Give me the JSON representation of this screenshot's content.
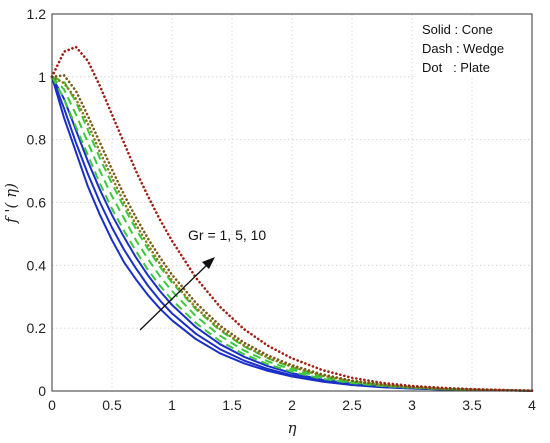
{
  "chart_data": {
    "type": "line",
    "xlabel": "η",
    "ylabel": "f '( η)",
    "xlim": [
      0,
      4
    ],
    "ylim": [
      0,
      1.2
    ],
    "xticks": [
      "0",
      "0.5",
      "1",
      "1.5",
      "2",
      "2.5",
      "3",
      "3.5",
      "4"
    ],
    "yticks": [
      "0",
      "0.2",
      "0.4",
      "0.6",
      "0.8",
      "1",
      "1.2"
    ],
    "grid": true,
    "legend_position": "top-right",
    "legend": [
      "Solid : Cone",
      "Dash : Wedge",
      "Dot   : Plate"
    ],
    "annotation": "Gr = 1, 5, 10",
    "x": [
      0,
      0.1,
      0.2,
      0.3,
      0.4,
      0.5,
      0.6,
      0.7,
      0.8,
      0.9,
      1.0,
      1.2,
      1.4,
      1.6,
      1.8,
      2.0,
      2.25,
      2.5,
      2.75,
      3.0,
      3.25,
      3.5,
      3.75,
      4.0
    ],
    "series": [
      {
        "style": "solid",
        "color": "#1a2fc8",
        "values": [
          1.0,
          0.87,
          0.76,
          0.65,
          0.56,
          0.48,
          0.41,
          0.355,
          0.305,
          0.262,
          0.225,
          0.165,
          0.12,
          0.088,
          0.064,
          0.046,
          0.03,
          0.019,
          0.012,
          0.008,
          0.005,
          0.003,
          0.002,
          0.001
        ]
      },
      {
        "style": "solid",
        "color": "#1a2fc8",
        "values": [
          1.0,
          0.9,
          0.79,
          0.69,
          0.6,
          0.52,
          0.45,
          0.39,
          0.335,
          0.288,
          0.247,
          0.182,
          0.133,
          0.097,
          0.07,
          0.05,
          0.032,
          0.02,
          0.013,
          0.008,
          0.005,
          0.003,
          0.002,
          0.001
        ]
      },
      {
        "style": "solid",
        "color": "#1a2fc8",
        "values": [
          1.0,
          0.93,
          0.83,
          0.73,
          0.64,
          0.56,
          0.49,
          0.425,
          0.368,
          0.318,
          0.274,
          0.203,
          0.149,
          0.109,
          0.079,
          0.057,
          0.036,
          0.023,
          0.014,
          0.009,
          0.006,
          0.004,
          0.002,
          0.001
        ]
      },
      {
        "style": "dash",
        "color": "#3cc83c",
        "values": [
          1.0,
          0.93,
          0.84,
          0.75,
          0.66,
          0.58,
          0.51,
          0.445,
          0.385,
          0.335,
          0.29,
          0.216,
          0.159,
          0.117,
          0.085,
          0.061,
          0.039,
          0.025,
          0.016,
          0.01,
          0.006,
          0.004,
          0.002,
          0.001
        ]
      },
      {
        "style": "dash",
        "color": "#3cc83c",
        "values": [
          1.0,
          0.96,
          0.88,
          0.79,
          0.7,
          0.62,
          0.55,
          0.48,
          0.42,
          0.365,
          0.318,
          0.238,
          0.176,
          0.129,
          0.094,
          0.068,
          0.043,
          0.027,
          0.017,
          0.011,
          0.007,
          0.004,
          0.002,
          0.001
        ]
      },
      {
        "style": "dash",
        "color": "#3cc83c",
        "values": [
          1.0,
          0.985,
          0.92,
          0.83,
          0.74,
          0.66,
          0.585,
          0.515,
          0.452,
          0.395,
          0.345,
          0.26,
          0.193,
          0.142,
          0.104,
          0.075,
          0.048,
          0.03,
          0.019,
          0.012,
          0.007,
          0.004,
          0.003,
          0.001
        ]
      },
      {
        "style": "dot",
        "color": "#8a7a1a",
        "values": [
          1.0,
          0.98,
          0.93,
          0.85,
          0.76,
          0.68,
          0.6,
          0.53,
          0.465,
          0.405,
          0.352,
          0.265,
          0.197,
          0.145,
          0.106,
          0.077,
          0.049,
          0.031,
          0.019,
          0.012,
          0.007,
          0.004,
          0.002,
          0.001
        ]
      },
      {
        "style": "dot",
        "color": "#7a5a1a",
        "values": [
          1.0,
          1.005,
          0.955,
          0.875,
          0.79,
          0.705,
          0.625,
          0.552,
          0.485,
          0.425,
          0.37,
          0.28,
          0.208,
          0.154,
          0.113,
          0.082,
          0.053,
          0.033,
          0.021,
          0.013,
          0.008,
          0.005,
          0.003,
          0.001
        ]
      },
      {
        "style": "dot",
        "color": "#a01e14",
        "values": [
          1.0,
          1.08,
          1.095,
          1.05,
          0.97,
          0.88,
          0.79,
          0.7,
          0.62,
          0.545,
          0.478,
          0.36,
          0.268,
          0.197,
          0.144,
          0.104,
          0.067,
          0.042,
          0.026,
          0.016,
          0.01,
          0.006,
          0.003,
          0.001
        ]
      }
    ]
  }
}
